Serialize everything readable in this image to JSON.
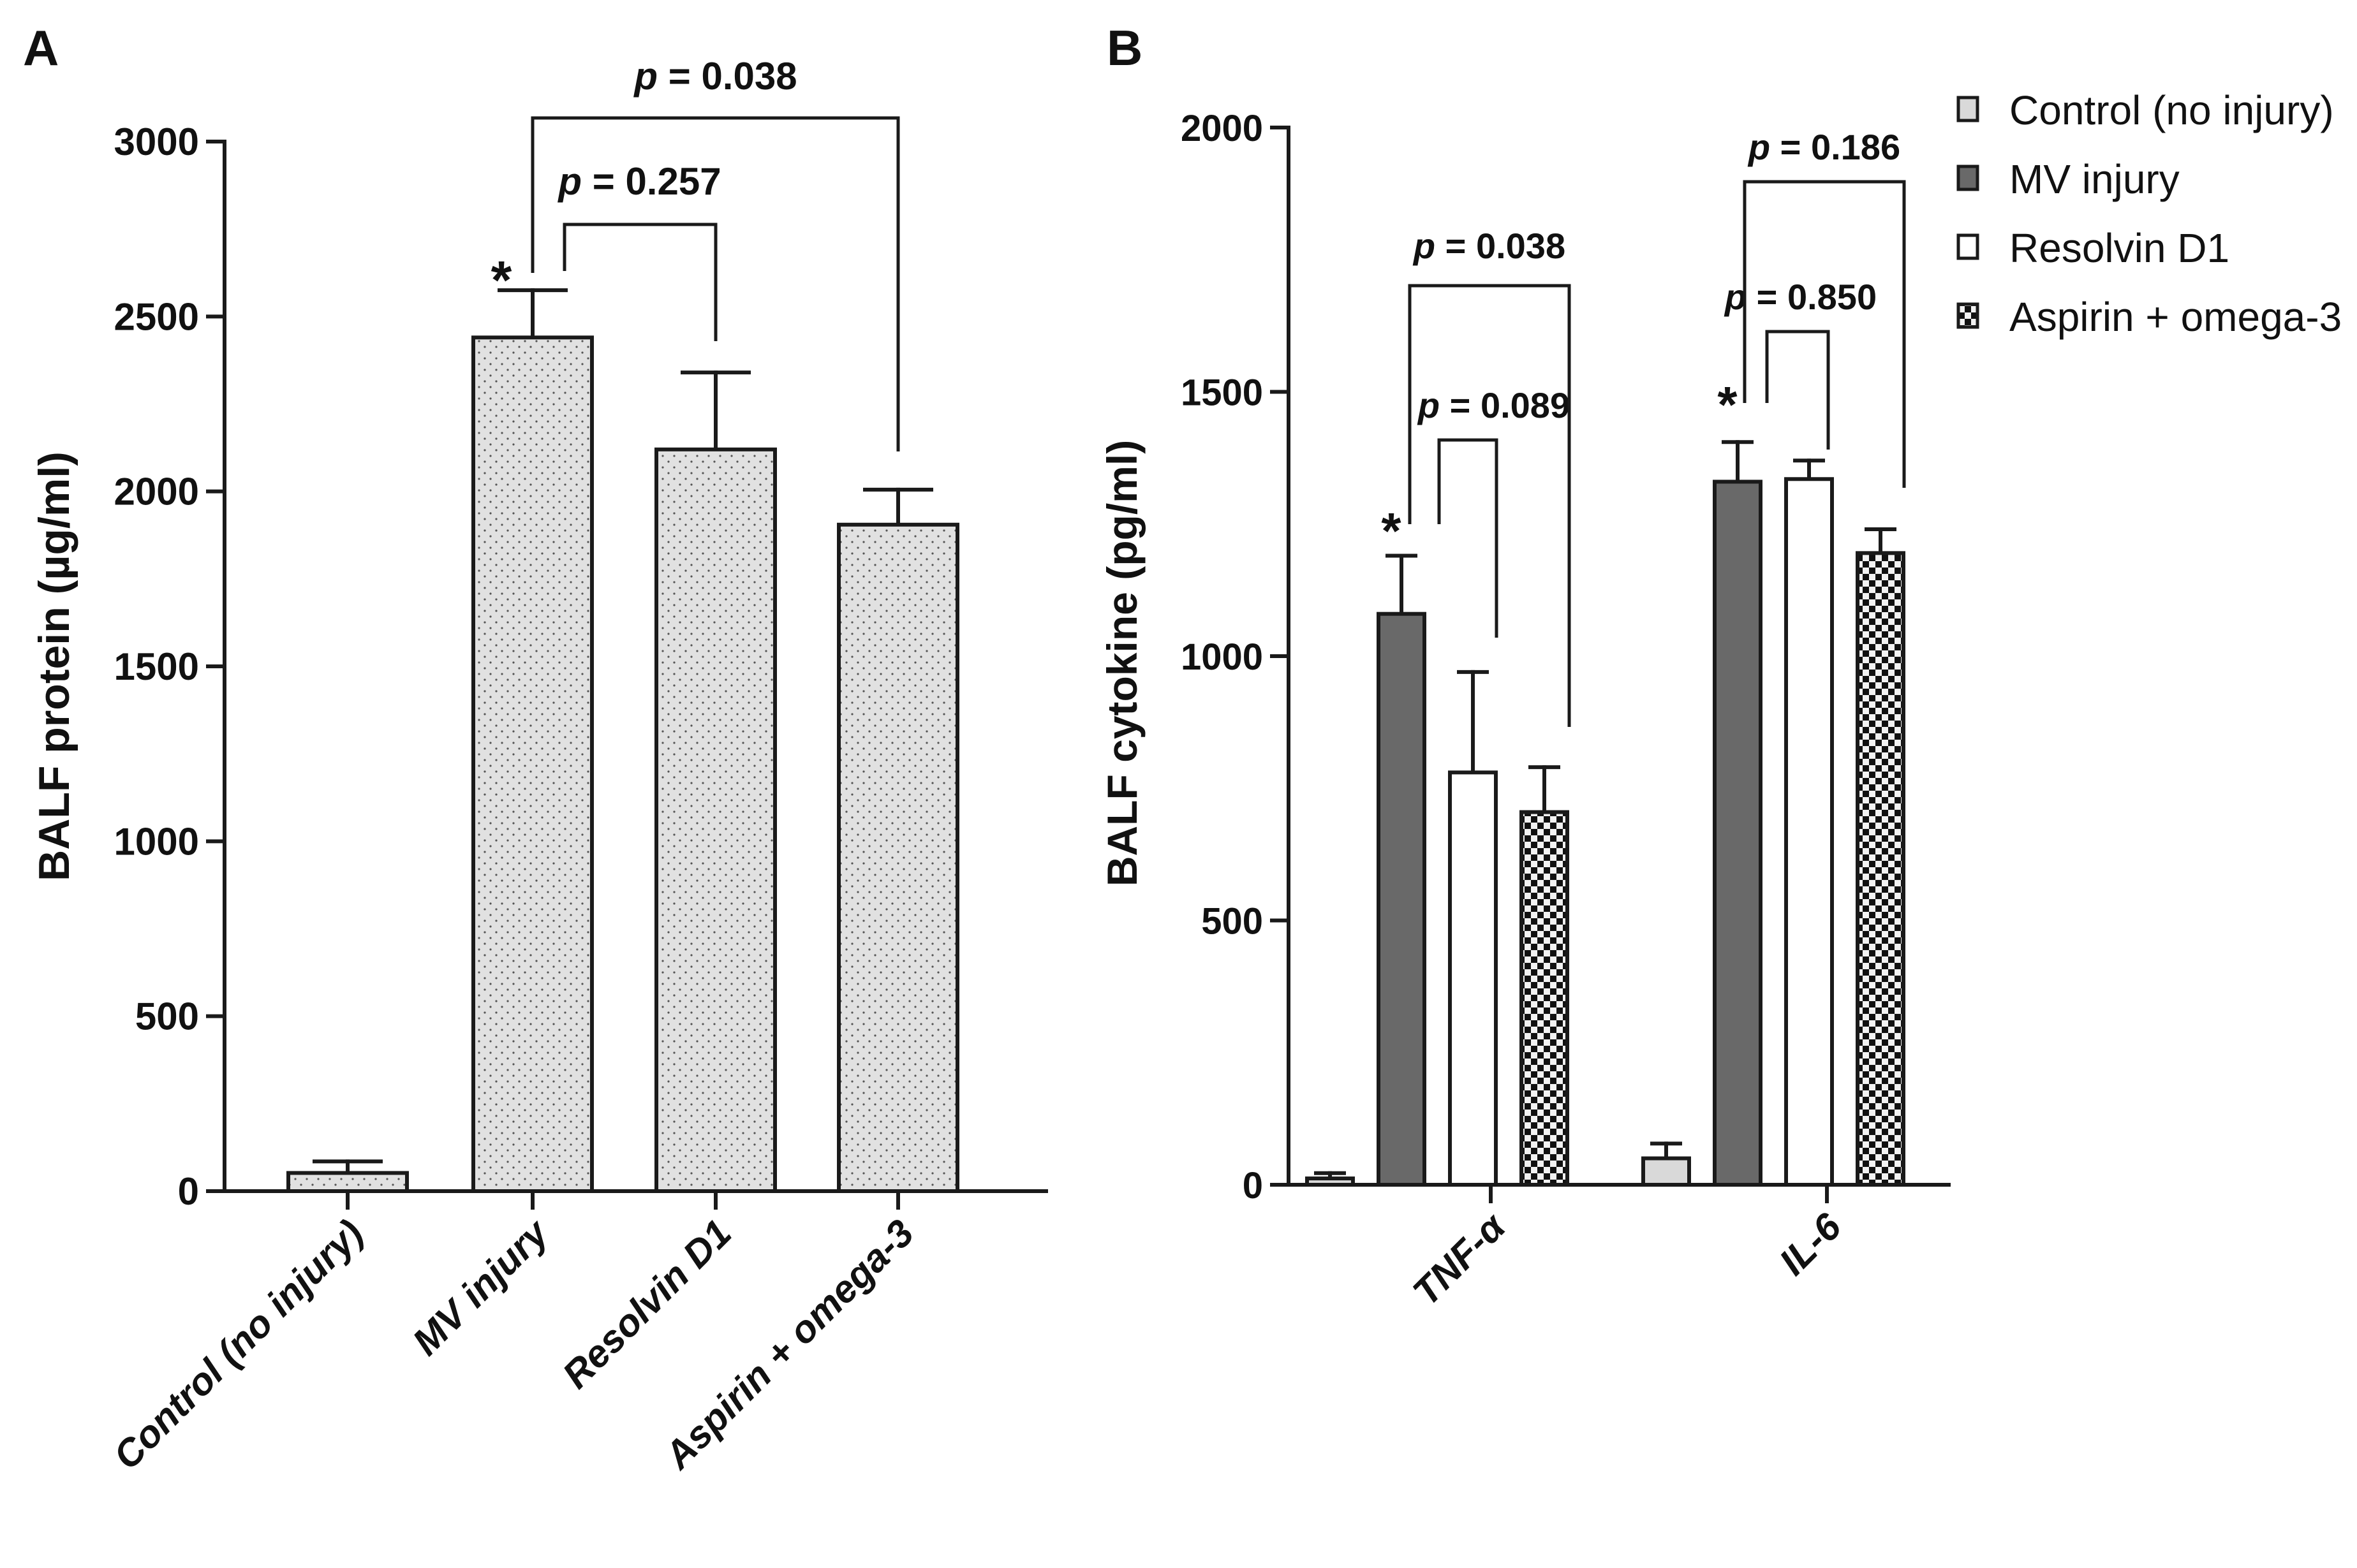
{
  "chart_data": [
    {
      "panel": "A",
      "type": "bar",
      "title": "",
      "xlabel": "",
      "ylabel": "BALF protein (µg/ml)",
      "ylim": [
        0,
        3000
      ],
      "yticks": [
        0,
        500,
        1000,
        1500,
        2000,
        2500,
        3000
      ],
      "grid": false,
      "categories": [
        "Control (no injury)",
        "MV injury",
        "Resolvin D1",
        "Aspirin + omega-3"
      ],
      "values": [
        52,
        2440,
        2120,
        1905
      ],
      "errors": [
        33,
        135,
        220,
        100
      ],
      "fill_pattern": "light gray dotted",
      "significance": [
        {
          "category": "MV injury",
          "label": "*"
        }
      ],
      "comparisons": [
        {
          "from": "MV injury",
          "to": "Resolvin D1",
          "p_prefix": "p",
          "p_text": " = 0.257"
        },
        {
          "from": "MV injury",
          "to": "Aspirin + omega-3",
          "p_prefix": "p",
          "p_text": " = 0.038"
        }
      ]
    },
    {
      "panel": "B",
      "type": "bar",
      "title": "",
      "xlabel": "",
      "ylabel": "BALF cytokine (pg/ml)",
      "ylim": [
        0,
        2000
      ],
      "yticks": [
        0,
        500,
        1000,
        1500,
        2000
      ],
      "grid": false,
      "categories": [
        "TNF-α",
        "IL-6"
      ],
      "series": [
        {
          "name": "Control (no injury)",
          "values": [
            12,
            50
          ],
          "errors": [
            10,
            28
          ],
          "color": "#d9d9d9"
        },
        {
          "name": "MV injury",
          "values": [
            1080,
            1330
          ],
          "errors": [
            110,
            75
          ],
          "color": "#696969"
        },
        {
          "name": "Resolvin D1",
          "values": [
            780,
            1335
          ],
          "errors": [
            190,
            35
          ],
          "color": "#ffffff"
        },
        {
          "name": "Aspirin + omega-3",
          "values": [
            705,
            1195
          ],
          "errors": [
            85,
            45
          ],
          "color": "checkered"
        }
      ],
      "legend_position": "top-right",
      "significance": [
        {
          "category": "TNF-α",
          "series": "MV injury",
          "label": "*"
        },
        {
          "category": "IL-6",
          "series": "MV injury",
          "label": "*"
        }
      ],
      "comparisons": [
        {
          "category": "TNF-α",
          "from": "MV injury",
          "to": "Resolvin D1",
          "p_prefix": "p",
          "p_text": " = 0.089"
        },
        {
          "category": "TNF-α",
          "from": "MV injury",
          "to": "Aspirin + omega-3",
          "p_prefix": "p",
          "p_text": " = 0.038"
        },
        {
          "category": "IL-6",
          "from": "MV injury",
          "to": "Resolvin D1",
          "p_prefix": "p",
          "p_text": " = 0.850"
        },
        {
          "category": "IL-6",
          "from": "MV injury",
          "to": "Aspirin + omega-3",
          "p_prefix": "p",
          "p_text": " = 0.186"
        }
      ]
    }
  ]
}
